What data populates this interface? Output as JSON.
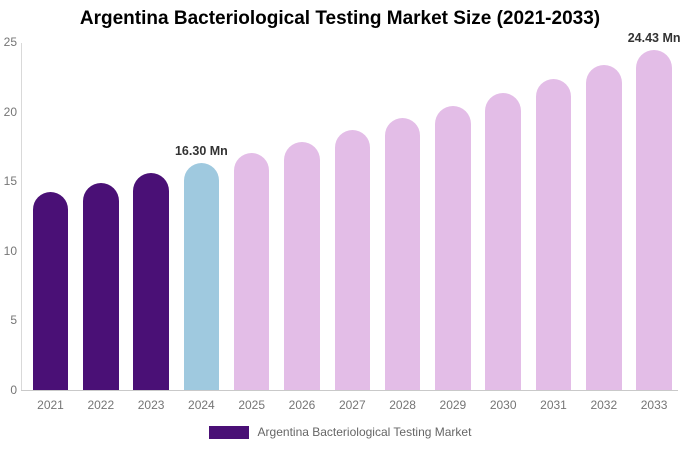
{
  "title": "Argentina Bacteriological Testing Market Size (2021-2033)",
  "chart_data": {
    "type": "bar",
    "title": "Argentina Bacteriological Testing Market Size (2021-2033)",
    "categories": [
      "2021",
      "2022",
      "2023",
      "2024",
      "2025",
      "2026",
      "2027",
      "2028",
      "2029",
      "2030",
      "2031",
      "2032",
      "2033"
    ],
    "values": [
      14.24,
      14.89,
      15.58,
      16.3,
      17.05,
      17.83,
      18.65,
      19.51,
      20.41,
      21.35,
      22.33,
      23.36,
      24.43
    ],
    "value_unit": "Mn",
    "xlabel": "",
    "ylabel": "",
    "ylim": [
      0,
      25
    ],
    "yticks": [
      0,
      5,
      10,
      15,
      20,
      25
    ],
    "grid": false,
    "bar_colors": [
      "#4A1076",
      "#4A1076",
      "#4A1076",
      "#9FC9DF",
      "#E3BDE7",
      "#E3BDE7",
      "#E3BDE7",
      "#E3BDE7",
      "#E3BDE7",
      "#E3BDE7",
      "#E3BDE7",
      "#E3BDE7",
      "#E3BDE7"
    ],
    "annotations": [
      {
        "category": "2024",
        "text": "16.30 Mn"
      },
      {
        "category": "2033",
        "text": "24.43 Mn"
      }
    ],
    "legend": {
      "position": "bottom",
      "entries": [
        {
          "label": "Argentina Bacteriological Testing Market",
          "color": "#4A1076"
        }
      ]
    }
  },
  "colors": {
    "historical_bar": "#4A1076",
    "current_year_bar": "#9FC9DF",
    "forecast_bar": "#E3BDE7",
    "axis_line": "#D9D9D9",
    "baseline": "#C9C9C9",
    "tick_label": "#757575",
    "annotation_text": "#333333",
    "legend_text": "#666666",
    "title_text": "#000000",
    "background": "#FFFFFF"
  }
}
